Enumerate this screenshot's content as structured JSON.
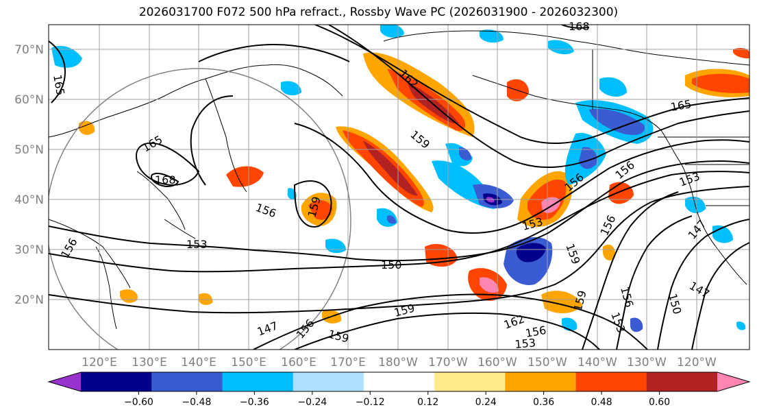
{
  "title": "2026031700 F072 500 hPa refract., Rossby Wave PC (2026031900 - 2026032300)",
  "lat_labels": [
    "70°N",
    "60°N",
    "50°N",
    "40°N",
    "30°N",
    "20°N"
  ],
  "lon_labels": [
    "120°E",
    "130°E",
    "140°E",
    "150°E",
    "160°E",
    "170°E",
    "180°W",
    "170°W",
    "160°W",
    "150°W",
    "140°W",
    "130°W",
    "120°W"
  ],
  "contour_labels": [
    "168",
    "165",
    "162",
    "159",
    "165",
    "168",
    "165",
    "156",
    "159",
    "153",
    "156",
    "150",
    "147",
    "156",
    "159",
    "159",
    "162",
    "156",
    "153",
    "153",
    "159",
    "156",
    "159",
    "156",
    "153",
    "156",
    "150",
    "147",
    "147",
    "153",
    "156"
  ],
  "colorbar": {
    "colors": [
      "#9932CC",
      "#00008B",
      "#3A5BD1",
      "#00BFFF",
      "#B0E0FF",
      "#FFFFFF",
      "#FFE98A",
      "#FFA500",
      "#FF4500",
      "#B22222",
      "#FF85B3"
    ],
    "tick_labels": [
      "−0.60",
      "−0.48",
      "−0.36",
      "−0.24",
      "−0.12",
      "0.12",
      "0.24",
      "0.36",
      "0.48",
      "0.60"
    ]
  },
  "colors": {
    "positive_high": "#B22222",
    "positive_mid": "#FF4500",
    "positive_low": "#FFA500",
    "negative_low": "#00BFFF",
    "negative_mid": "#3A5BD1",
    "negative_high": "#00008B"
  }
}
